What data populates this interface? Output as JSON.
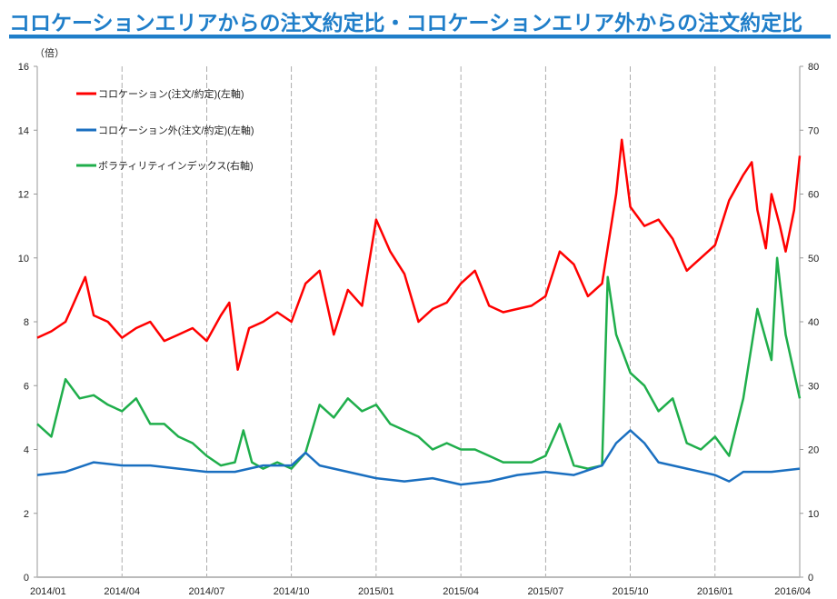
{
  "title": "コロケーションエリアからの注文約定比・コロケーションエリア外からの注文約定比",
  "chart_data": {
    "type": "line",
    "title": "コロケーションエリアからの注文約定比・コロケーションエリア外からの注文約定比",
    "ylabel": "（倍）",
    "x_unit": "months since 2014/01",
    "xlim": [
      0,
      27
    ],
    "ylim": [
      0,
      16
    ],
    "y2lim": [
      0,
      80
    ],
    "yticks": [
      "0",
      "2",
      "4",
      "6",
      "8",
      "10",
      "12",
      "14",
      "16"
    ],
    "y2ticks": [
      "0",
      "10",
      "20",
      "30",
      "40",
      "50",
      "60",
      "70",
      "80"
    ],
    "xticks": [
      "2014/01",
      "2014/04",
      "2014/07",
      "2014/10",
      "2015/01",
      "2015/04",
      "2015/07",
      "2015/10",
      "2016/01",
      "2016/04"
    ],
    "legend_position": "top-left",
    "series": [
      {
        "name": "コロケーション(注文/約定)(左軸)",
        "axis": "left",
        "color": "#ff0000",
        "x": [
          0,
          0.5,
          1,
          1.4,
          1.7,
          2,
          2.5,
          3,
          3.5,
          4,
          4.5,
          5,
          5.5,
          6,
          6.5,
          6.8,
          7.1,
          7.5,
          8,
          8.5,
          9,
          9.5,
          10,
          10.5,
          11,
          11.5,
          12,
          12.5,
          13,
          13.5,
          14,
          14.5,
          15,
          15.5,
          16,
          16.5,
          17,
          17.5,
          18,
          18.5,
          19,
          19.5,
          20,
          20.5,
          20.7,
          21,
          21.5,
          22,
          22.5,
          23,
          23.5,
          24,
          24.5,
          25,
          25.3,
          25.5,
          25.8,
          26,
          26.3,
          26.5,
          26.8,
          27
        ],
        "y": [
          7.5,
          7.7,
          8.0,
          8.8,
          9.4,
          8.2,
          8.0,
          7.5,
          7.8,
          8.0,
          7.4,
          7.6,
          7.8,
          7.4,
          8.2,
          8.6,
          6.5,
          7.8,
          8.0,
          8.3,
          8.0,
          9.2,
          9.6,
          7.6,
          9.0,
          8.5,
          11.2,
          10.2,
          9.5,
          8.0,
          8.4,
          8.6,
          9.2,
          9.6,
          8.5,
          8.3,
          8.4,
          8.5,
          8.8,
          10.2,
          9.8,
          8.8,
          9.2,
          12.0,
          13.7,
          11.6,
          11.0,
          11.2,
          10.6,
          9.6,
          10.0,
          10.4,
          11.8,
          12.6,
          13.0,
          11.5,
          10.3,
          12.0,
          11.0,
          10.2,
          11.5,
          13.2
        ]
      },
      {
        "name": "コロケーション外(注文/約定)(左軸)",
        "axis": "left",
        "color": "#1a6fc0",
        "x": [
          0,
          1,
          2,
          3,
          4,
          5,
          6,
          7,
          8,
          9,
          9.5,
          10,
          11,
          12,
          13,
          14,
          15,
          16,
          17,
          18,
          19,
          20,
          20.5,
          21,
          21.5,
          22,
          22.5,
          23,
          24,
          24.5,
          25,
          26,
          27
        ],
        "y": [
          3.2,
          3.3,
          3.6,
          3.5,
          3.5,
          3.4,
          3.3,
          3.3,
          3.5,
          3.5,
          3.9,
          3.5,
          3.3,
          3.1,
          3.0,
          3.1,
          2.9,
          3.0,
          3.2,
          3.3,
          3.2,
          3.5,
          4.2,
          4.6,
          4.2,
          3.6,
          3.5,
          3.4,
          3.2,
          3.0,
          3.3,
          3.3,
          3.4
        ]
      },
      {
        "name": "ボラティリティインデックス(右軸)",
        "axis": "right",
        "color": "#1fae4b",
        "x": [
          0,
          0.5,
          1,
          1.5,
          2,
          2.5,
          3,
          3.5,
          4,
          4.5,
          5,
          5.5,
          6,
          6.5,
          7,
          7.3,
          7.6,
          8,
          8.5,
          9,
          9.5,
          10,
          10.5,
          11,
          11.5,
          12,
          12.5,
          13,
          13.5,
          14,
          14.5,
          15,
          15.5,
          16,
          16.5,
          17,
          17.5,
          18,
          18.5,
          19,
          19.5,
          20,
          20.2,
          20.5,
          21,
          21.5,
          22,
          22.5,
          23,
          23.5,
          24,
          24.5,
          25,
          25.5,
          26,
          26.2,
          26.5,
          27
        ],
        "y": [
          24,
          22,
          31,
          28,
          28.5,
          27,
          26,
          28,
          24,
          24,
          22,
          21,
          19,
          17.5,
          18,
          23,
          18,
          17,
          18,
          17,
          19.5,
          27,
          25,
          28,
          26,
          27,
          24,
          23,
          22,
          20,
          21,
          20,
          20,
          19,
          18,
          18,
          18,
          19,
          24,
          17.5,
          17,
          17.5,
          47,
          38,
          32,
          30,
          26,
          28,
          21,
          20,
          22,
          19,
          28,
          42,
          34,
          50,
          38,
          28
        ]
      }
    ]
  }
}
